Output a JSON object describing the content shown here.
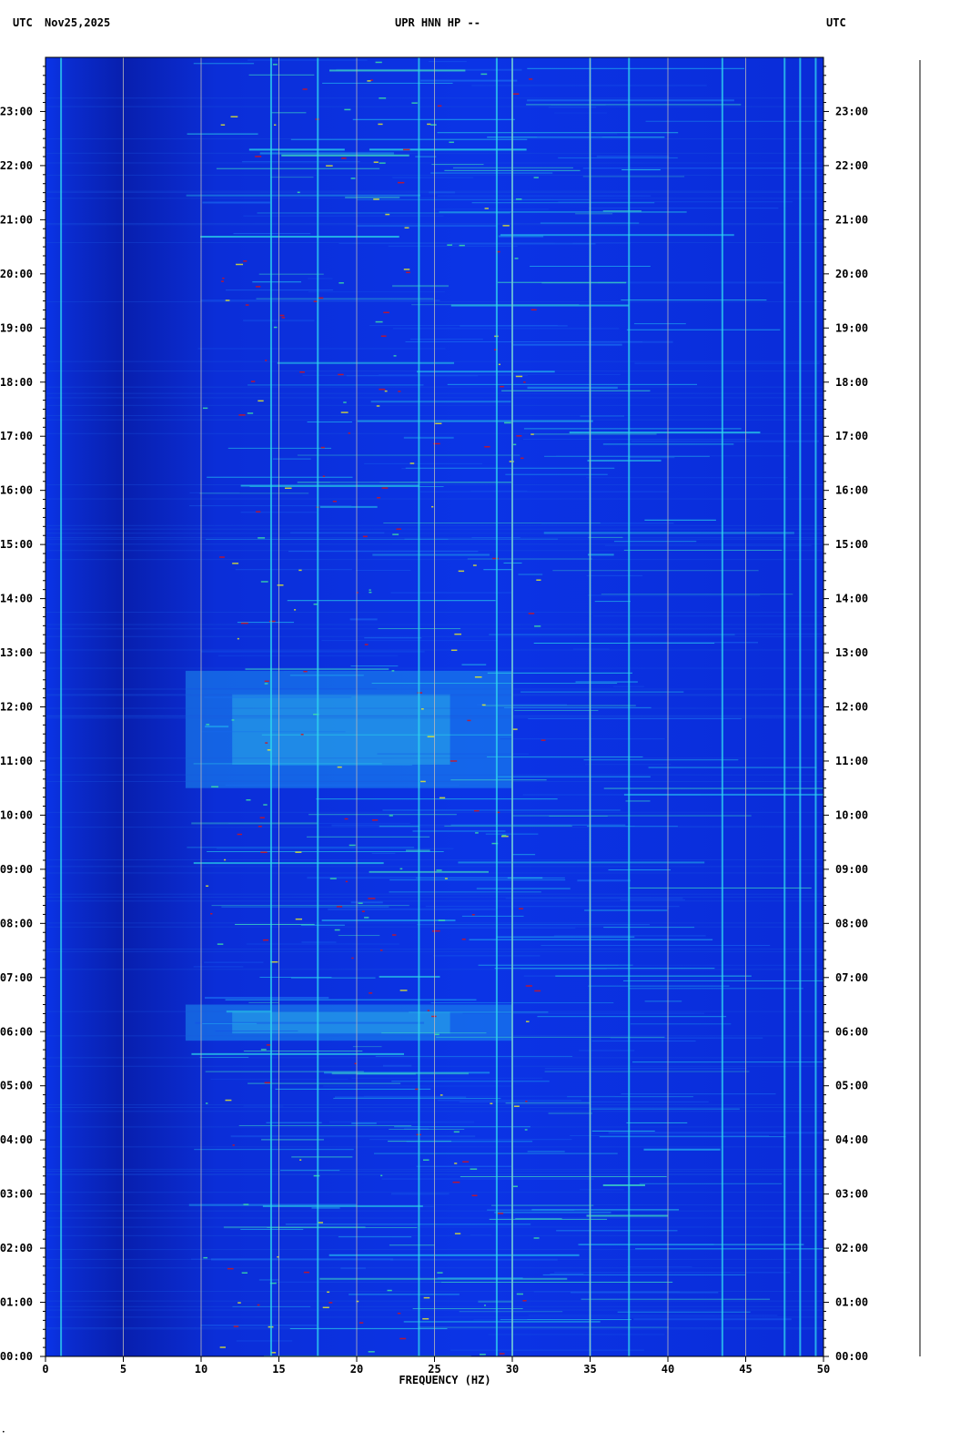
{
  "header": {
    "left_tz": "UTC",
    "date": "Nov25,2025",
    "station": "UPR HNN HP --",
    "right_tz": "UTC"
  },
  "colors": {
    "background_blue": "#0a2ad8",
    "deep_blue": "#061aa8",
    "cyan": "#22d8f0",
    "yellow": "#f0f020",
    "red": "#e01010",
    "grid": "#b8b8b8"
  },
  "chart_data": {
    "type": "heatmap",
    "title": "UPR HNN HP --",
    "xlabel": "FREQUENCY (HZ)",
    "ylabel": "",
    "xlim": [
      0,
      50
    ],
    "ylim": [
      "00:00",
      "24:00"
    ],
    "x_ticks": [
      "0",
      "5",
      "10",
      "15",
      "20",
      "25",
      "30",
      "35",
      "40",
      "45",
      "50"
    ],
    "y_ticks": [
      "00:00",
      "01:00",
      "02:00",
      "03:00",
      "04:00",
      "05:00",
      "06:00",
      "07:00",
      "08:00",
      "09:00",
      "10:00",
      "11:00",
      "12:00",
      "13:00",
      "14:00",
      "15:00",
      "16:00",
      "17:00",
      "18:00",
      "19:00",
      "20:00",
      "21:00",
      "22:00",
      "23:00"
    ],
    "grid": true,
    "persistent_lines_hz": [
      1.0,
      14.5,
      17.5,
      24.0,
      29.0,
      30.0,
      35.0,
      37.5,
      43.5,
      47.5,
      48.5,
      49.5
    ],
    "high_energy_bands_utc": [
      {
        "start": "05:50",
        "end": "06:30",
        "fmin": 9,
        "fmax": 30
      },
      {
        "start": "10:30",
        "end": "12:40",
        "fmin": 9,
        "fmax": 30
      }
    ]
  }
}
